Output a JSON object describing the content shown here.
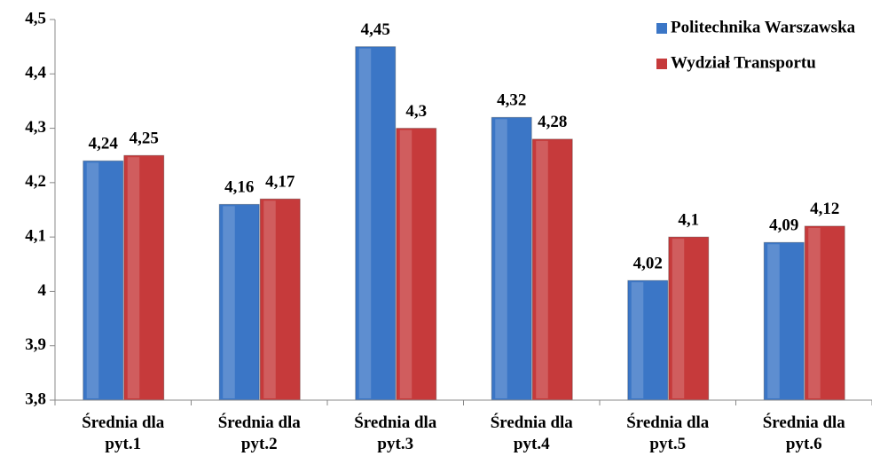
{
  "chart_data": {
    "type": "bar",
    "categories": [
      "Średnia dla pyt.1",
      "Średnia dla pyt.2",
      "Średnia dla pyt.3",
      "Średnia dla pyt.4",
      "Średnia dla pyt.5",
      "Średnia dla pyt.6"
    ],
    "series": [
      {
        "name": "Politechnika Warszawska",
        "color": "#3b76c6",
        "values": [
          4.24,
          4.16,
          4.45,
          4.32,
          4.02,
          4.09
        ],
        "value_labels": [
          "4,24",
          "4,16",
          "4,45",
          "4,32",
          "4,02",
          "4,09"
        ]
      },
      {
        "name": "Wydział Transportu",
        "color": "#c63a3b",
        "values": [
          4.25,
          4.17,
          4.3,
          4.28,
          4.1,
          4.12
        ],
        "value_labels": [
          "4,25",
          "4,17",
          "4,3",
          "4,28",
          "4,1",
          "4,12"
        ]
      }
    ],
    "ylim": [
      3.8,
      4.5
    ],
    "yticks": [
      {
        "value": 3.8,
        "label": "3,8"
      },
      {
        "value": 3.9,
        "label": "3,9"
      },
      4,
      {
        "value": 4.1,
        "label": "4,1"
      },
      {
        "value": 4.2,
        "label": "4,2"
      },
      {
        "value": 4.3,
        "label": "4,3"
      },
      {
        "value": 4.4,
        "label": "4,4"
      },
      {
        "value": 4.5,
        "label": "4,5"
      }
    ],
    "legend": "upper right"
  }
}
